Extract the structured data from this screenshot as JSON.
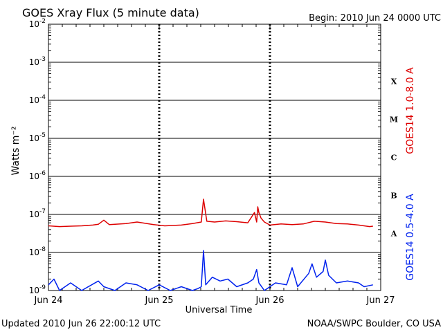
{
  "title": "GOES Xray Flux (5 minute data)",
  "begin_label": "Begin:  2010 Jun 24 0000 UTC",
  "updated_label": "Updated 2010 Jun 26 22:00:12 UTC",
  "credit_label": "NOAA/SWPC Boulder, CO USA",
  "chart_data": {
    "type": "line",
    "xlabel": "Universal Time",
    "ylabel": "Watts m⁻²",
    "y_scale": "log",
    "ylim_exponents": [
      -9,
      -2
    ],
    "y_ticks": [
      {
        "base": "10",
        "exp": "-9"
      },
      {
        "base": "10",
        "exp": "-8"
      },
      {
        "base": "10",
        "exp": "-7"
      },
      {
        "base": "10",
        "exp": "-6"
      },
      {
        "base": "10",
        "exp": "-5"
      },
      {
        "base": "10",
        "exp": "-4"
      },
      {
        "base": "10",
        "exp": "-3"
      },
      {
        "base": "10",
        "exp": "-2"
      }
    ],
    "x_ticks": [
      "Jun 24",
      "Jun 25",
      "Jun 26",
      "Jun 27"
    ],
    "flare_classes": [
      "A",
      "B",
      "C",
      "M",
      "X"
    ],
    "grid": true,
    "series": [
      {
        "name": "GOES14 1.0-8.0 A",
        "color": "#dd0000",
        "points": [
          [
            0.0,
            -7.3
          ],
          [
            0.1,
            -7.32
          ],
          [
            0.2,
            -7.31
          ],
          [
            0.3,
            -7.3
          ],
          [
            0.4,
            -7.28
          ],
          [
            0.45,
            -7.26
          ],
          [
            0.5,
            -7.15
          ],
          [
            0.55,
            -7.27
          ],
          [
            0.7,
            -7.24
          ],
          [
            0.8,
            -7.2
          ],
          [
            0.95,
            -7.27
          ],
          [
            1.05,
            -7.3
          ],
          [
            1.2,
            -7.28
          ],
          [
            1.3,
            -7.24
          ],
          [
            1.38,
            -7.2
          ],
          [
            1.4,
            -6.6
          ],
          [
            1.43,
            -7.18
          ],
          [
            1.5,
            -7.2
          ],
          [
            1.6,
            -7.17
          ],
          [
            1.7,
            -7.19
          ],
          [
            1.8,
            -7.22
          ],
          [
            1.86,
            -6.95
          ],
          [
            1.88,
            -7.2
          ],
          [
            1.89,
            -6.8
          ],
          [
            1.9,
            -6.95
          ],
          [
            1.92,
            -7.1
          ],
          [
            1.95,
            -7.2
          ],
          [
            2.0,
            -7.28
          ],
          [
            2.1,
            -7.25
          ],
          [
            2.2,
            -7.27
          ],
          [
            2.3,
            -7.25
          ],
          [
            2.4,
            -7.18
          ],
          [
            2.5,
            -7.2
          ],
          [
            2.6,
            -7.24
          ],
          [
            2.7,
            -7.25
          ],
          [
            2.8,
            -7.28
          ],
          [
            2.85,
            -7.3
          ],
          [
            2.9,
            -7.32
          ],
          [
            2.93,
            -7.31
          ]
        ]
      },
      {
        "name": "GOES14 0.5-4.0 A",
        "color": "#0022ee",
        "points": [
          [
            0.0,
            -8.85
          ],
          [
            0.05,
            -8.7
          ],
          [
            0.1,
            -9.0
          ],
          [
            0.2,
            -8.8
          ],
          [
            0.3,
            -9.0
          ],
          [
            0.45,
            -8.75
          ],
          [
            0.5,
            -8.9
          ],
          [
            0.6,
            -9.0
          ],
          [
            0.7,
            -8.8
          ],
          [
            0.8,
            -8.85
          ],
          [
            0.9,
            -9.0
          ],
          [
            1.0,
            -8.85
          ],
          [
            1.1,
            -9.0
          ],
          [
            1.2,
            -8.9
          ],
          [
            1.3,
            -9.0
          ],
          [
            1.35,
            -8.95
          ],
          [
            1.38,
            -8.9
          ],
          [
            1.4,
            -7.95
          ],
          [
            1.42,
            -8.85
          ],
          [
            1.48,
            -8.65
          ],
          [
            1.55,
            -8.75
          ],
          [
            1.62,
            -8.7
          ],
          [
            1.7,
            -8.9
          ],
          [
            1.8,
            -8.8
          ],
          [
            1.85,
            -8.7
          ],
          [
            1.88,
            -8.45
          ],
          [
            1.9,
            -8.8
          ],
          [
            1.95,
            -9.0
          ],
          [
            2.05,
            -8.8
          ],
          [
            2.15,
            -8.85
          ],
          [
            2.2,
            -8.4
          ],
          [
            2.25,
            -8.9
          ],
          [
            2.35,
            -8.55
          ],
          [
            2.38,
            -8.3
          ],
          [
            2.42,
            -8.65
          ],
          [
            2.48,
            -8.5
          ],
          [
            2.5,
            -8.2
          ],
          [
            2.53,
            -8.6
          ],
          [
            2.6,
            -8.8
          ],
          [
            2.7,
            -8.75
          ],
          [
            2.8,
            -8.8
          ],
          [
            2.85,
            -8.9
          ],
          [
            2.93,
            -8.85
          ]
        ]
      }
    ]
  }
}
